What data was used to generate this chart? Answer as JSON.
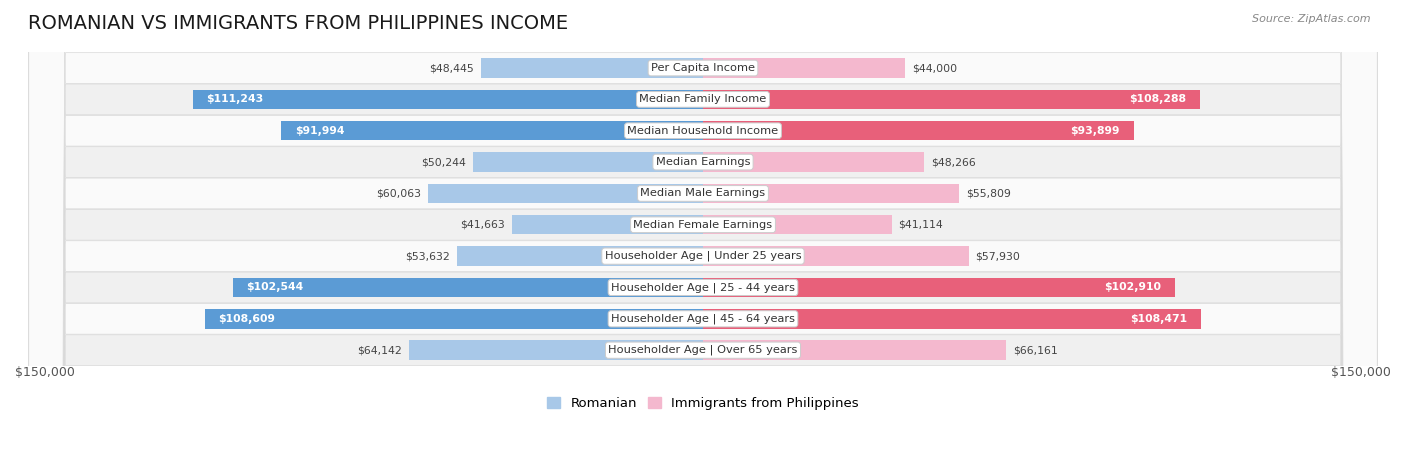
{
  "title": "ROMANIAN VS IMMIGRANTS FROM PHILIPPINES INCOME",
  "source": "Source: ZipAtlas.com",
  "categories": [
    "Per Capita Income",
    "Median Family Income",
    "Median Household Income",
    "Median Earnings",
    "Median Male Earnings",
    "Median Female Earnings",
    "Householder Age | Under 25 years",
    "Householder Age | 25 - 44 years",
    "Householder Age | 45 - 64 years",
    "Householder Age | Over 65 years"
  ],
  "romanian_values": [
    48445,
    111243,
    91994,
    50244,
    60063,
    41663,
    53632,
    102544,
    108609,
    64142
  ],
  "philippines_values": [
    44000,
    108288,
    93899,
    48266,
    55809,
    41114,
    57930,
    102910,
    108471,
    66161
  ],
  "romanian_color_light": "#a8c8e8",
  "romanian_color_dark": "#5b9bd5",
  "philippines_color_light": "#f4b8ce",
  "philippines_color_dark": "#e8607a",
  "row_bg_odd": "#f0f0f0",
  "row_bg_even": "#fafafa",
  "max_value": 150000,
  "xlabel_left": "$150,000",
  "xlabel_right": "$150,000",
  "legend_romanian": "Romanian",
  "legend_philippines": "Immigrants from Philippines",
  "title_fontsize": 14,
  "bar_height": 0.62,
  "label_threshold": 70000
}
